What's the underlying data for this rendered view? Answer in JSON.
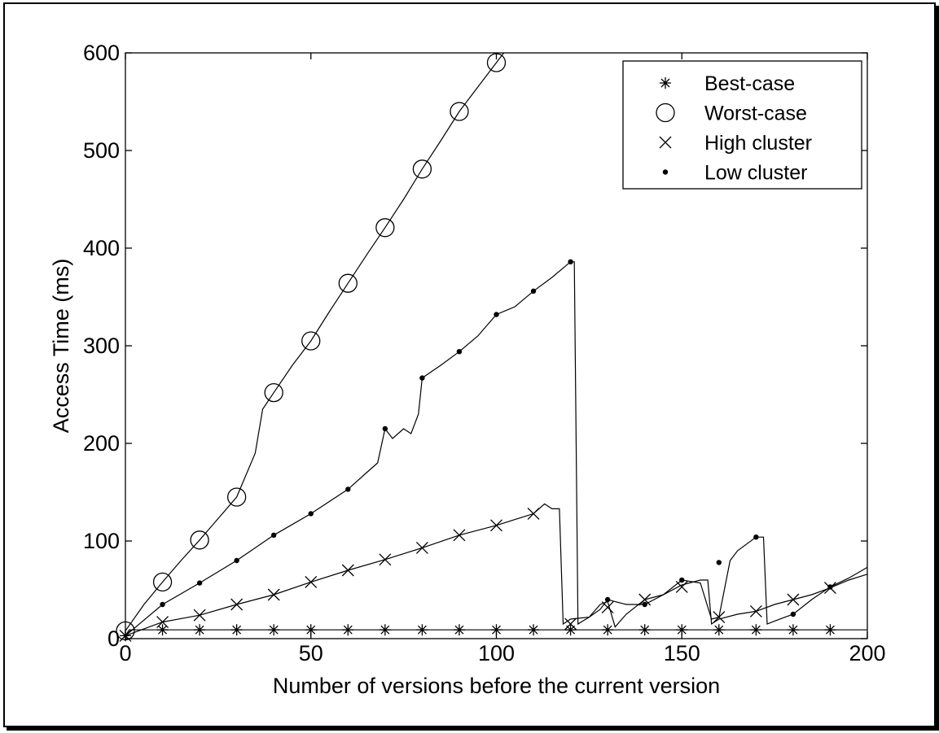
{
  "chart_data": {
    "type": "line",
    "title": "",
    "xlabel": "Number of versions before the current version",
    "ylabel": "Access Time (ms)",
    "xlim": [
      0,
      200
    ],
    "ylim": [
      0,
      600
    ],
    "xticks": [
      0,
      50,
      100,
      150,
      200
    ],
    "yticks": [
      0,
      100,
      200,
      300,
      400,
      500,
      600
    ],
    "grid": false,
    "legend_position": "top-right",
    "series": [
      {
        "name": "Best-case",
        "marker": "asterisk",
        "line": [
          [
            0,
            3
          ],
          [
            1,
            9
          ],
          [
            200,
            9
          ]
        ],
        "markers": [
          [
            0,
            3
          ],
          [
            10,
            9
          ],
          [
            20,
            9
          ],
          [
            30,
            9
          ],
          [
            40,
            9
          ],
          [
            50,
            9
          ],
          [
            60,
            9
          ],
          [
            70,
            9
          ],
          [
            80,
            9
          ],
          [
            90,
            9
          ],
          [
            100,
            9
          ],
          [
            110,
            9
          ],
          [
            120,
            9
          ],
          [
            130,
            9
          ],
          [
            140,
            9
          ],
          [
            150,
            9
          ],
          [
            160,
            9
          ],
          [
            170,
            9
          ],
          [
            180,
            9
          ],
          [
            190,
            9
          ]
        ]
      },
      {
        "name": "Worst-case",
        "marker": "circle",
        "line": [
          [
            0,
            8
          ],
          [
            5,
            35
          ],
          [
            10,
            58
          ],
          [
            15,
            80
          ],
          [
            20,
            101
          ],
          [
            25,
            123
          ],
          [
            30,
            145
          ],
          [
            35,
            190
          ],
          [
            37,
            235
          ],
          [
            40,
            252
          ],
          [
            45,
            280
          ],
          [
            50,
            305
          ],
          [
            55,
            335
          ],
          [
            60,
            364
          ],
          [
            65,
            393
          ],
          [
            70,
            421
          ],
          [
            75,
            450
          ],
          [
            80,
            481
          ],
          [
            85,
            510
          ],
          [
            90,
            540
          ],
          [
            95,
            565
          ],
          [
            100,
            590
          ],
          [
            102,
            600
          ]
        ],
        "markers": [
          [
            0,
            8
          ],
          [
            10,
            58
          ],
          [
            20,
            101
          ],
          [
            30,
            145
          ],
          [
            40,
            252
          ],
          [
            50,
            305
          ],
          [
            60,
            364
          ],
          [
            70,
            421
          ],
          [
            80,
            481
          ],
          [
            90,
            540
          ],
          [
            100,
            590
          ]
        ]
      },
      {
        "name": "High cluster",
        "marker": "x",
        "line": [
          [
            0,
            3
          ],
          [
            10,
            17
          ],
          [
            20,
            24
          ],
          [
            30,
            35
          ],
          [
            40,
            45
          ],
          [
            50,
            58
          ],
          [
            60,
            70
          ],
          [
            70,
            81
          ],
          [
            80,
            93
          ],
          [
            90,
            106
          ],
          [
            100,
            116
          ],
          [
            110,
            128
          ],
          [
            113,
            138
          ],
          [
            115,
            133
          ],
          [
            117,
            133
          ],
          [
            118,
            15
          ],
          [
            120,
            20
          ],
          [
            125,
            22
          ],
          [
            128,
            35
          ],
          [
            130,
            38
          ],
          [
            132,
            12
          ],
          [
            135,
            25
          ],
          [
            140,
            40
          ],
          [
            145,
            45
          ],
          [
            150,
            55
          ],
          [
            155,
            60
          ],
          [
            157,
            60
          ],
          [
            158,
            15
          ],
          [
            160,
            20
          ],
          [
            165,
            25
          ],
          [
            170,
            28
          ],
          [
            175,
            35
          ],
          [
            180,
            40
          ],
          [
            185,
            45
          ],
          [
            190,
            52
          ],
          [
            195,
            60
          ],
          [
            200,
            66
          ]
        ],
        "markers": [
          [
            0,
            3
          ],
          [
            10,
            17
          ],
          [
            20,
            24
          ],
          [
            30,
            35
          ],
          [
            40,
            45
          ],
          [
            50,
            58
          ],
          [
            60,
            70
          ],
          [
            70,
            81
          ],
          [
            80,
            93
          ],
          [
            90,
            106
          ],
          [
            100,
            116
          ],
          [
            110,
            128
          ],
          [
            120,
            15
          ],
          [
            130,
            32
          ],
          [
            140,
            40
          ],
          [
            150,
            53
          ],
          [
            160,
            22
          ],
          [
            170,
            28
          ],
          [
            180,
            40
          ],
          [
            190,
            52
          ]
        ]
      },
      {
        "name": "Low cluster",
        "marker": "dot",
        "line": [
          [
            0,
            3
          ],
          [
            10,
            35
          ],
          [
            20,
            57
          ],
          [
            30,
            80
          ],
          [
            40,
            106
          ],
          [
            50,
            128
          ],
          [
            60,
            153
          ],
          [
            65,
            170
          ],
          [
            68,
            180
          ],
          [
            70,
            215
          ],
          [
            72,
            205
          ],
          [
            75,
            215
          ],
          [
            77,
            210
          ],
          [
            79,
            230
          ],
          [
            80,
            267
          ],
          [
            85,
            280
          ],
          [
            90,
            294
          ],
          [
            95,
            310
          ],
          [
            100,
            332
          ],
          [
            105,
            340
          ],
          [
            110,
            356
          ],
          [
            115,
            370
          ],
          [
            120,
            386
          ],
          [
            121,
            386
          ],
          [
            122,
            15
          ],
          [
            125,
            22
          ],
          [
            128,
            30
          ],
          [
            130,
            40
          ],
          [
            135,
            35
          ],
          [
            140,
            35
          ],
          [
            145,
            45
          ],
          [
            150,
            60
          ],
          [
            155,
            57
          ],
          [
            158,
            20
          ],
          [
            160,
            22
          ],
          [
            163,
            80
          ],
          [
            165,
            90
          ],
          [
            170,
            104
          ],
          [
            172,
            104
          ],
          [
            173,
            15
          ],
          [
            175,
            18
          ],
          [
            180,
            25
          ],
          [
            185,
            40
          ],
          [
            190,
            53
          ],
          [
            195,
            62
          ],
          [
            200,
            73
          ]
        ],
        "markers": [
          [
            10,
            35
          ],
          [
            20,
            57
          ],
          [
            30,
            80
          ],
          [
            40,
            106
          ],
          [
            50,
            128
          ],
          [
            60,
            153
          ],
          [
            70,
            215
          ],
          [
            80,
            267
          ],
          [
            90,
            294
          ],
          [
            100,
            332
          ],
          [
            110,
            356
          ],
          [
            120,
            386
          ],
          [
            130,
            40
          ],
          [
            140,
            35
          ],
          [
            150,
            60
          ],
          [
            160,
            78
          ],
          [
            170,
            104
          ],
          [
            180,
            25
          ],
          [
            190,
            53
          ]
        ]
      }
    ]
  }
}
